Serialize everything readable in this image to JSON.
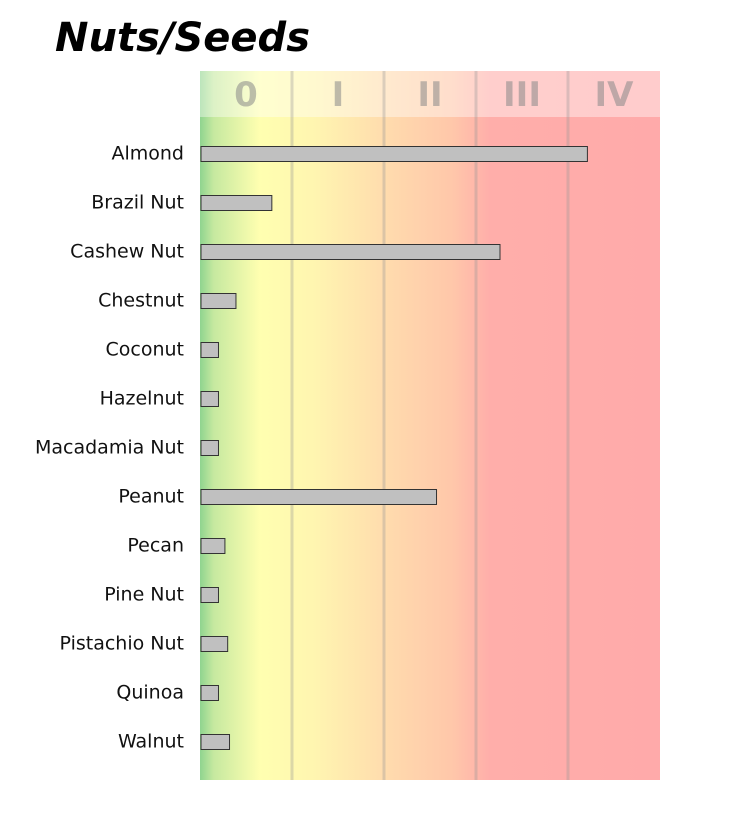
{
  "chart_data": {
    "type": "bar",
    "orientation": "horizontal",
    "title": "Nuts/Seeds",
    "xlabel": "",
    "ylabel": "",
    "band_labels": [
      "0",
      "I",
      "II",
      "III",
      "IV"
    ],
    "categories": [
      "Almond",
      "Brazil Nut",
      "Cashew Nut",
      "Chestnut",
      "Coconut",
      "Hazelnut",
      "Macadamia Nut",
      "Peanut",
      "Pecan",
      "Pine Nut",
      "Pistachio Nut",
      "Quinoa",
      "Walnut"
    ],
    "values": [
      4.2,
      0.77,
      3.25,
      0.38,
      0.19,
      0.19,
      0.19,
      2.56,
      0.26,
      0.19,
      0.29,
      0.19,
      0.31
    ],
    "xlim": [
      0,
      5
    ],
    "grid": true,
    "legend": "none",
    "colors": {
      "bar_fill": "#c0c0c0",
      "bar_stroke": "#333333",
      "band_green": "#8fd48f",
      "band_yellow": "#ffffb0",
      "band_orange": "#ffd1a8",
      "band_red": "#ffaaaa"
    }
  }
}
